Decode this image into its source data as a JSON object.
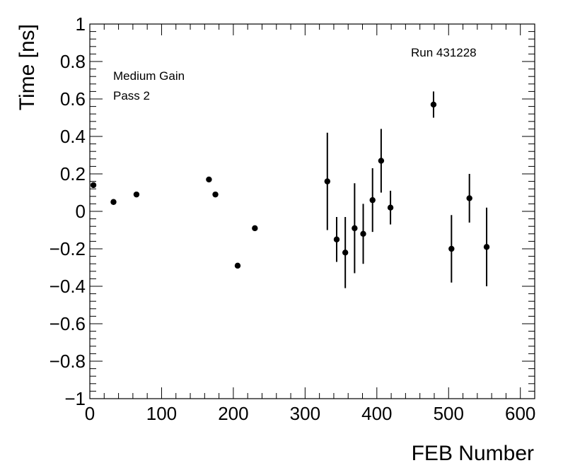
{
  "chart_data": {
    "type": "scatter",
    "xlabel": "FEB Number",
    "ylabel": "Time [ns]",
    "xlim": [
      0,
      620
    ],
    "ylim": [
      -1,
      1
    ],
    "x_ticks": [
      0,
      100,
      200,
      300,
      400,
      500,
      600
    ],
    "x_tick_labels": [
      "0",
      "100",
      "200",
      "300",
      "400",
      "500",
      "600"
    ],
    "y_ticks": [
      -1,
      -0.8,
      -0.6,
      -0.4,
      -0.2,
      0,
      0.2,
      0.4,
      0.6,
      0.8,
      1
    ],
    "y_tick_labels": [
      "−1",
      "−0.8",
      "−0.6",
      "−0.4",
      "−0.2",
      "0",
      "0.2",
      "0.4",
      "0.6",
      "0.8",
      "1"
    ],
    "grid": false,
    "annotations": [
      "Medium Gain",
      "Pass 2",
      "Run 431228"
    ],
    "series": [
      {
        "marker_color": "#000000",
        "points": [
          {
            "x": 5,
            "y": 0.14,
            "err": 0
          },
          {
            "x": 33,
            "y": 0.05,
            "err": 0
          },
          {
            "x": 65,
            "y": 0.09,
            "err": 0
          },
          {
            "x": 166,
            "y": 0.17,
            "err": 0
          },
          {
            "x": 175,
            "y": 0.09,
            "err": 0
          },
          {
            "x": 206,
            "y": -0.29,
            "err": 0
          },
          {
            "x": 230,
            "y": -0.09,
            "err": 0
          },
          {
            "x": 331,
            "y": 0.16,
            "err": 0.26
          },
          {
            "x": 344,
            "y": -0.15,
            "err": 0.12
          },
          {
            "x": 356,
            "y": -0.22,
            "err": 0.19
          },
          {
            "x": 369,
            "y": -0.09,
            "err": 0.24
          },
          {
            "x": 381,
            "y": -0.12,
            "err": 0.16
          },
          {
            "x": 394,
            "y": 0.06,
            "err": 0.17
          },
          {
            "x": 406,
            "y": 0.27,
            "err": 0.17
          },
          {
            "x": 419,
            "y": 0.02,
            "err": 0.09
          },
          {
            "x": 479,
            "y": 0.57,
            "err": 0.07
          },
          {
            "x": 504,
            "y": -0.2,
            "err": 0.18
          },
          {
            "x": 529,
            "y": 0.07,
            "err": 0.13
          },
          {
            "x": 553,
            "y": -0.19,
            "err": 0.21
          }
        ]
      }
    ]
  }
}
